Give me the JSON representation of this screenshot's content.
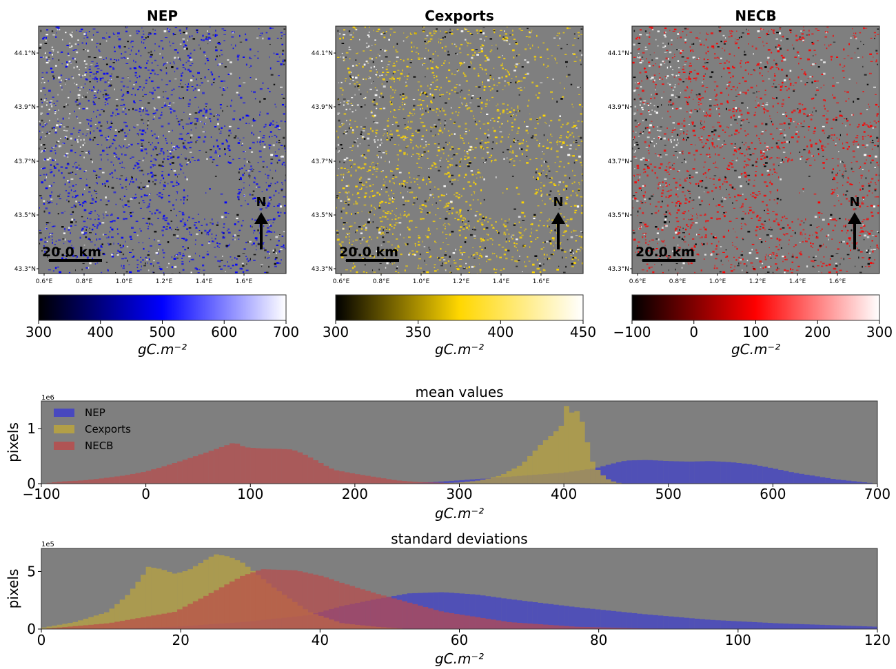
{
  "maps": [
    {
      "title": "NEP",
      "lat_ticks": [
        "44.1°N",
        "43.9°N",
        "43.7°N",
        "43.5°N",
        "43.3°N"
      ],
      "lon_ticks": [
        "0.6°E",
        "0.8°E",
        "1.0°E",
        "1.2°E",
        "1.4°E",
        "1.6°E"
      ],
      "scalebar_label": "20.0 km",
      "north_label": "N",
      "colors": [
        "#000000",
        "#0000ff",
        "#ffffff"
      ],
      "colorbar": {
        "ticks": [
          "300",
          "400",
          "500",
          "600",
          "700"
        ],
        "min": 300,
        "max": 700,
        "label": "gC.m⁻²"
      }
    },
    {
      "title": "Cexports",
      "lat_ticks": [
        "44.1°N",
        "43.9°N",
        "43.7°N",
        "43.5°N",
        "43.3°N"
      ],
      "lon_ticks": [
        "0.6°E",
        "0.8°E",
        "1.0°E",
        "1.2°E",
        "1.4°E",
        "1.6°E"
      ],
      "scalebar_label": "20.0 km",
      "north_label": "N",
      "colors": [
        "#000000",
        "#ffd700",
        "#ffffff"
      ],
      "colorbar": {
        "ticks": [
          "300",
          "350",
          "400",
          "450"
        ],
        "min": 300,
        "max": 450,
        "label": "gC.m⁻²"
      }
    },
    {
      "title": "NECB",
      "lat_ticks": [
        "44.1°N",
        "43.9°N",
        "43.7°N",
        "43.5°N",
        "43.3°N"
      ],
      "lon_ticks": [
        "0.6°E",
        "0.8°E",
        "1.0°E",
        "1.2°E",
        "1.4°E",
        "1.6°E"
      ],
      "scalebar_label": "20.0 km",
      "north_label": "N",
      "colors": [
        "#000000",
        "#ff0000",
        "#ffffff"
      ],
      "colorbar": {
        "ticks": [
          "−100",
          "0",
          "100",
          "200",
          "300"
        ],
        "min": -100,
        "max": 300,
        "label": "gC.m⁻²"
      }
    }
  ],
  "chart_data": [
    {
      "type": "bar",
      "title": "mean values",
      "xlabel": "gC.m⁻²",
      "ylabel": "pixels",
      "y_scale_label": "1e6",
      "xlim": [
        -100,
        700
      ],
      "ylim": [
        0,
        1.5
      ],
      "x_ticks": [
        "−100",
        "0",
        "100",
        "200",
        "300",
        "400",
        "500",
        "600",
        "700"
      ],
      "y_ticks": [
        "0",
        "1"
      ],
      "legend_position": "top-left",
      "series": [
        {
          "name": "NEP",
          "color": "#3b3bd0",
          "points": [
            [
              250,
              0.0
            ],
            [
              300,
              0.06
            ],
            [
              350,
              0.13
            ],
            [
              400,
              0.2
            ],
            [
              430,
              0.28
            ],
            [
              450,
              0.38
            ],
            [
              460,
              0.42
            ],
            [
              480,
              0.43
            ],
            [
              500,
              0.41
            ],
            [
              520,
              0.4
            ],
            [
              540,
              0.41
            ],
            [
              560,
              0.39
            ],
            [
              580,
              0.35
            ],
            [
              600,
              0.28
            ],
            [
              620,
              0.2
            ],
            [
              640,
              0.14
            ],
            [
              660,
              0.08
            ],
            [
              680,
              0.04
            ],
            [
              695,
              0.01
            ],
            [
              700,
              0.0
            ]
          ]
        },
        {
          "name": "Cexports",
          "color": "#bfa83a",
          "points": [
            [
              270,
              0.0
            ],
            [
              300,
              0.02
            ],
            [
              320,
              0.06
            ],
            [
              340,
              0.15
            ],
            [
              360,
              0.35
            ],
            [
              370,
              0.55
            ],
            [
              380,
              0.75
            ],
            [
              390,
              0.9
            ],
            [
              400,
              1.1
            ],
            [
              402,
              1.45
            ],
            [
              405,
              1.2
            ],
            [
              410,
              1.38
            ],
            [
              415,
              1.25
            ],
            [
              420,
              1.0
            ],
            [
              425,
              0.5
            ],
            [
              430,
              0.3
            ],
            [
              440,
              0.1
            ],
            [
              450,
              0.02
            ],
            [
              460,
              0.0
            ]
          ]
        },
        {
          "name": "NECB",
          "color": "#bd4a4a",
          "points": [
            [
              -100,
              0.0
            ],
            [
              -80,
              0.04
            ],
            [
              -60,
              0.06
            ],
            [
              -40,
              0.1
            ],
            [
              -20,
              0.15
            ],
            [
              0,
              0.22
            ],
            [
              20,
              0.33
            ],
            [
              40,
              0.45
            ],
            [
              60,
              0.58
            ],
            [
              75,
              0.68
            ],
            [
              85,
              0.75
            ],
            [
              95,
              0.66
            ],
            [
              110,
              0.64
            ],
            [
              130,
              0.63
            ],
            [
              140,
              0.62
            ],
            [
              150,
              0.55
            ],
            [
              160,
              0.45
            ],
            [
              170,
              0.35
            ],
            [
              180,
              0.25
            ],
            [
              200,
              0.18
            ],
            [
              220,
              0.12
            ],
            [
              240,
              0.06
            ],
            [
              260,
              0.03
            ],
            [
              280,
              0.02
            ],
            [
              300,
              0.0
            ]
          ]
        }
      ]
    },
    {
      "type": "bar",
      "title": "standard deviations",
      "xlabel": "gC.m⁻²",
      "ylabel": "pixels",
      "y_scale_label": "1e5",
      "xlim": [
        0,
        125
      ],
      "ylim": [
        0,
        7
      ],
      "x_ticks": [
        "0",
        "20",
        "40",
        "60",
        "80",
        "100",
        "120"
      ],
      "y_ticks": [
        "0",
        "5"
      ],
      "series": [
        {
          "name": "NEP",
          "color": "#3b3bd0",
          "points": [
            [
              0,
              0.0
            ],
            [
              10,
              0.05
            ],
            [
              20,
              0.2
            ],
            [
              30,
              0.6
            ],
            [
              40,
              1.2
            ],
            [
              45,
              2.0
            ],
            [
              50,
              2.6
            ],
            [
              55,
              3.1
            ],
            [
              60,
              3.2
            ],
            [
              65,
              3.0
            ],
            [
              70,
              2.6
            ],
            [
              80,
              1.9
            ],
            [
              90,
              1.3
            ],
            [
              100,
              0.8
            ],
            [
              110,
              0.5
            ],
            [
              120,
              0.3
            ],
            [
              125,
              0.2
            ]
          ]
        },
        {
          "name": "Cexports",
          "color": "#bfa83a",
          "points": [
            [
              0,
              0.1
            ],
            [
              5,
              0.6
            ],
            [
              10,
              1.5
            ],
            [
              13,
              3.0
            ],
            [
              15,
              4.5
            ],
            [
              16,
              5.4
            ],
            [
              18,
              5.2
            ],
            [
              20,
              4.8
            ],
            [
              22,
              5.1
            ],
            [
              24,
              5.8
            ],
            [
              26,
              6.5
            ],
            [
              28,
              6.3
            ],
            [
              30,
              5.8
            ],
            [
              35,
              3.5
            ],
            [
              40,
              1.5
            ],
            [
              45,
              0.5
            ],
            [
              50,
              0.2
            ],
            [
              55,
              0.0
            ]
          ]
        },
        {
          "name": "NECB",
          "color": "#bd4a4a",
          "points": [
            [
              0,
              0.0
            ],
            [
              10,
              0.5
            ],
            [
              20,
              1.5
            ],
            [
              25,
              3.0
            ],
            [
              30,
              4.6
            ],
            [
              33,
              5.2
            ],
            [
              38,
              5.1
            ],
            [
              42,
              4.6
            ],
            [
              45,
              4.0
            ],
            [
              50,
              3.1
            ],
            [
              55,
              2.3
            ],
            [
              60,
              1.5
            ],
            [
              70,
              0.6
            ],
            [
              80,
              0.2
            ],
            [
              90,
              0.05
            ],
            [
              100,
              0.0
            ]
          ]
        }
      ]
    }
  ]
}
